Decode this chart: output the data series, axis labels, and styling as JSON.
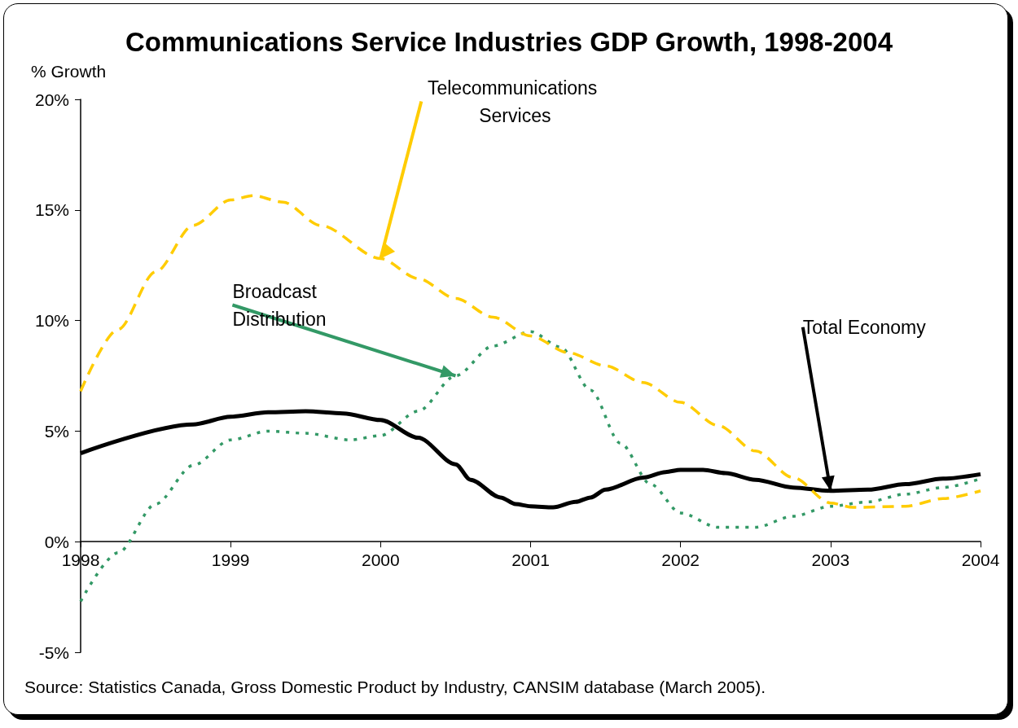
{
  "chart_data": {
    "type": "line",
    "title": "Communications Service Industries GDP Growth, 1998-2004",
    "ylabel": "% Growth",
    "xlim": [
      1998,
      2004
    ],
    "xticks": [
      1998,
      1999,
      2000,
      2001,
      2002,
      2003,
      2004
    ],
    "ylim": [
      -5,
      20
    ],
    "yticks": [
      {
        "value": -5,
        "label": "-5%"
      },
      {
        "value": 0,
        "label": "0%"
      },
      {
        "value": 5,
        "label": "5%"
      },
      {
        "value": 10,
        "label": "10%"
      },
      {
        "value": 15,
        "label": "15%"
      },
      {
        "value": 20,
        "label": "20%"
      }
    ],
    "marker": "none",
    "series": [
      {
        "name": "Telecommunications Services",
        "color": "#ffcc00",
        "line_style": "dashed",
        "x": [
          1998,
          1998.25,
          1998.5,
          1998.75,
          1999,
          1999.15,
          1999.35,
          1999.6,
          2000,
          2000.25,
          2000.5,
          2000.75,
          2001,
          2001.25,
          2001.5,
          2001.75,
          2002,
          2002.25,
          2002.5,
          2002.75,
          2003,
          2003.15,
          2003.5,
          2003.75,
          2004
        ],
        "values": [
          6.8,
          9.6,
          12.2,
          14.3,
          15.45,
          15.65,
          15.35,
          14.3,
          12.8,
          11.9,
          11.0,
          10.15,
          9.3,
          8.55,
          7.95,
          7.2,
          6.3,
          5.25,
          4.1,
          2.9,
          1.75,
          1.55,
          1.6,
          1.95,
          2.3
        ]
      },
      {
        "name": "Broadcast Distribution",
        "color": "#339966",
        "line_style": "dotted",
        "x": [
          1998,
          1998.25,
          1998.5,
          1998.75,
          1999,
          1999.25,
          1999.5,
          1999.8,
          2000,
          2000.25,
          2000.5,
          2000.75,
          2001,
          2001.2,
          2001.4,
          2001.6,
          2001.8,
          2002,
          2002.25,
          2002.5,
          2002.75,
          2003,
          2003.25,
          2003.5,
          2003.75,
          2004
        ],
        "values": [
          -2.7,
          -0.5,
          1.7,
          3.45,
          4.6,
          5.0,
          4.9,
          4.6,
          4.8,
          5.9,
          7.5,
          8.85,
          9.5,
          8.8,
          6.85,
          4.45,
          2.6,
          1.3,
          0.65,
          0.65,
          1.15,
          1.6,
          1.8,
          2.15,
          2.45,
          2.85
        ]
      },
      {
        "name": "Total Economy",
        "color": "#000000",
        "line_style": "solid",
        "x": [
          1998,
          1998.75,
          1999,
          1999.25,
          1999.5,
          1999.75,
          2000,
          2000.25,
          2000.5,
          2000.6,
          2000.8,
          2000.9,
          2001,
          2001.15,
          2001.3,
          2001.4,
          2001.5,
          2001.75,
          2001.9,
          2002,
          2002.15,
          2002.3,
          2002.5,
          2002.75,
          2003,
          2003.25,
          2003.5,
          2003.75,
          2004
        ],
        "values": [
          4.0,
          5.3,
          5.65,
          5.85,
          5.9,
          5.8,
          5.5,
          4.7,
          3.5,
          2.8,
          2.0,
          1.7,
          1.6,
          1.55,
          1.8,
          2.0,
          2.35,
          2.9,
          3.15,
          3.25,
          3.25,
          3.1,
          2.8,
          2.45,
          2.3,
          2.35,
          2.6,
          2.85,
          3.05
        ]
      }
    ],
    "annotations": [
      "Source: Statistics Canada, Gross Domestic Product by Industry, CANSIM database (March 2005)."
    ]
  }
}
